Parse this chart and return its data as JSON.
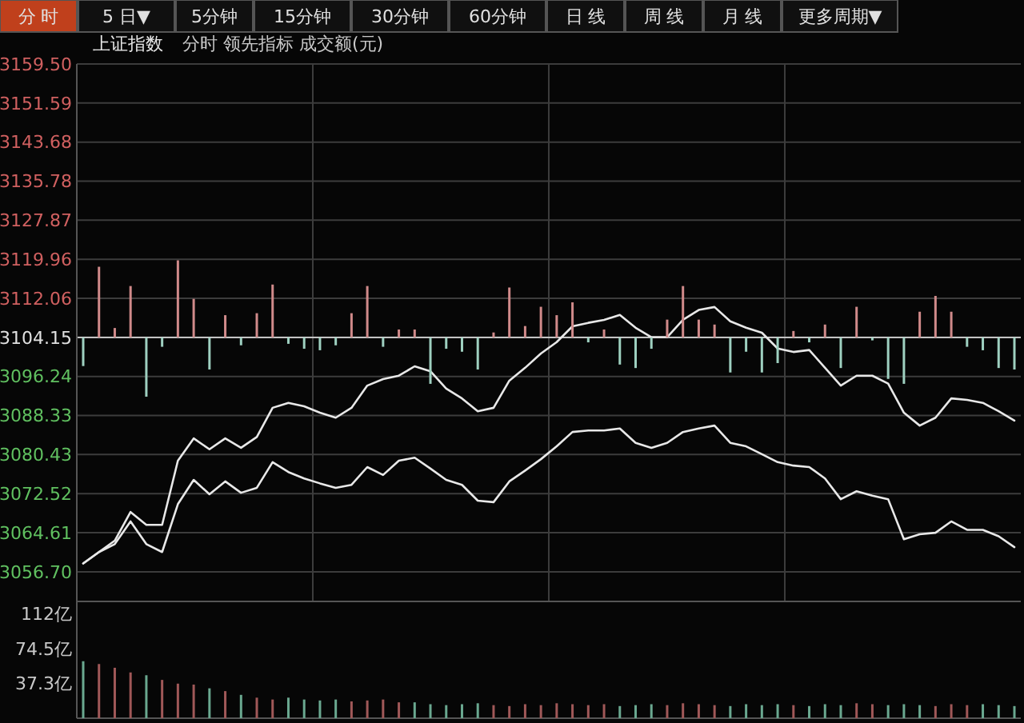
{
  "chart_data": [
    {
      "type": "line",
      "title": "上证指数",
      "subtitle": "分时  领先指标  成交额(元)",
      "grid": true,
      "annotations": [
        "分 时",
        "5 日▼",
        "5分钟",
        "15分钟",
        "30分钟",
        "60分钟",
        "日 线",
        "周 线",
        "月 线",
        "更多周期▼"
      ],
      "categories": [
        null,
        null,
        null,
        null,
        null,
        null,
        null,
        null,
        null,
        null,
        null,
        null,
        null,
        null,
        null,
        null,
        null,
        null,
        null,
        null,
        null,
        null,
        null,
        null,
        null,
        null,
        null,
        null,
        null,
        null,
        null,
        null,
        null,
        null,
        null,
        null,
        null,
        null,
        null,
        null,
        null,
        null,
        null,
        null,
        null,
        null,
        null,
        null,
        null,
        null,
        null,
        null,
        null,
        null,
        null,
        null,
        null,
        null,
        null,
        null
      ],
      "ylim": [
        3050.7,
        3159.5
      ],
      "yticks": [
        {
          "value": 3056.7,
          "label": "3056.70"
        },
        {
          "value": 3064.61,
          "label": "3064.61"
        },
        {
          "value": 3072.52,
          "label": "3072.52"
        },
        {
          "value": 3080.43,
          "label": "3080.43"
        },
        {
          "value": 3088.33,
          "label": "3088.33"
        },
        {
          "value": 3096.24,
          "label": "3096.24"
        },
        {
          "value": 3104.15,
          "label": "3104.15"
        },
        {
          "value": 3112.06,
          "label": "3112.06"
        },
        {
          "value": 3119.96,
          "label": "3119.96"
        },
        {
          "value": 3127.87,
          "label": "3127.87"
        },
        {
          "value": 3135.78,
          "label": "3135.78"
        },
        {
          "value": 3143.68,
          "label": "3143.68"
        },
        {
          "value": 3151.59,
          "label": "3151.59"
        },
        {
          "value": 3159.5,
          "label": "3159.50"
        }
      ],
      "ref_lines": [
        {
          "axis": "y",
          "value": 3104.15,
          "color": "#d8d8d8"
        }
      ],
      "series": [
        {
          "color": "#e8e8e8",
          "values": [
            3058.4,
            3060.7,
            3063.0,
            3068.8,
            3066.2,
            3066.2,
            3079.2,
            3083.7,
            3081.5,
            3083.7,
            3081.8,
            3084.0,
            3089.9,
            3090.9,
            3090.2,
            3088.9,
            3087.9,
            3089.9,
            3094.4,
            3095.7,
            3096.4,
            3098.3,
            3097.3,
            3093.8,
            3091.8,
            3089.2,
            3089.9,
            3095.4,
            3098.0,
            3100.9,
            3103.2,
            3106.4,
            3107.1,
            3107.7,
            3108.7,
            3106.1,
            3104.2,
            3104.2,
            3107.7,
            3109.7,
            3110.3,
            3107.4,
            3106.1,
            3105.1,
            3101.9,
            3101.2,
            3101.6,
            3098.0,
            3094.4,
            3096.4,
            3096.4,
            3094.8,
            3088.9,
            3086.3,
            3087.9,
            3091.8,
            3091.5,
            3090.9,
            3089.2,
            3087.3
          ]
        },
        {
          "color": "#e8e8e8",
          "values": [
            3058.4,
            3060.7,
            3062.3,
            3066.9,
            3062.3,
            3060.7,
            3070.4,
            3075.3,
            3072.4,
            3075.0,
            3072.7,
            3073.7,
            3078.9,
            3076.9,
            3075.6,
            3074.6,
            3073.7,
            3074.3,
            3077.9,
            3076.3,
            3079.2,
            3079.8,
            3077.6,
            3075.3,
            3074.3,
            3071.1,
            3070.8,
            3075.0,
            3077.2,
            3079.5,
            3082.1,
            3085.0,
            3085.3,
            3085.3,
            3085.7,
            3082.8,
            3081.8,
            3082.8,
            3085.0,
            3085.7,
            3086.3,
            3082.8,
            3082.1,
            3080.5,
            3078.9,
            3078.2,
            3077.9,
            3075.6,
            3071.4,
            3073.0,
            3072.1,
            3071.4,
            3063.3,
            3064.3,
            3064.6,
            3066.9,
            3065.2,
            3065.2,
            3063.9,
            3061.7
          ]
        },
        {
          "type": "bar",
          "values": [
            -5.8,
            14.3,
            1.9,
            10.4,
            -12.0,
            -1.9,
            15.6,
            7.8,
            -6.5,
            4.5,
            -1.6,
            4.9,
            10.7,
            -1.3,
            -2.3,
            -2.6,
            -1.6,
            4.9,
            10.4,
            -1.9,
            1.6,
            1.6,
            -9.4,
            -2.3,
            -2.9,
            -6.5,
            1.0,
            10.1,
            2.3,
            6.2,
            4.5,
            7.1,
            -1.0,
            1.6,
            -5.5,
            -6.2,
            -2.3,
            3.6,
            10.4,
            3.6,
            2.6,
            -7.1,
            -2.9,
            -7.1,
            -5.2,
            1.3,
            -1.0,
            2.6,
            -6.2,
            6.2,
            -0.6,
            -8.4,
            -9.4,
            5.2,
            8.4,
            5.2,
            -1.9,
            -2.6,
            -6.2,
            -6.5
          ],
          "base": [
            3104.15,
            3104.15,
            3104.15,
            3104.15,
            3104.15,
            3104.15,
            3104.15,
            3104.15,
            3104.15,
            3104.15,
            3104.15,
            3104.15,
            3104.15,
            3104.15,
            3104.15,
            3104.15,
            3104.15,
            3104.15,
            3104.15,
            3104.15,
            3104.15,
            3104.15,
            3104.15,
            3104.15,
            3104.15,
            3104.15,
            3104.15,
            3104.15,
            3104.15,
            3104.15,
            3104.15,
            3104.15,
            3104.15,
            3104.15,
            3104.15,
            3104.15,
            3104.15,
            3104.15,
            3104.15,
            3104.15,
            3104.15,
            3104.15,
            3104.15,
            3104.15,
            3104.15,
            3104.15,
            3104.15,
            3104.15,
            3104.15,
            3104.15,
            3104.15,
            3104.15,
            3104.15,
            3104.15,
            3104.15,
            3104.15,
            3104.15,
            3104.15,
            3104.15,
            3104.15
          ],
          "colors": [
            "#9ed0c0",
            "#d08a8a",
            "#d08a8a",
            "#d08a8a",
            "#9ed0c0",
            "#9ed0c0",
            "#d08a8a",
            "#d08a8a",
            "#9ed0c0",
            "#d08a8a",
            "#9ed0c0",
            "#d08a8a",
            "#d08a8a",
            "#9ed0c0",
            "#9ed0c0",
            "#9ed0c0",
            "#9ed0c0",
            "#d08a8a",
            "#d08a8a",
            "#9ed0c0",
            "#d08a8a",
            "#d08a8a",
            "#9ed0c0",
            "#9ed0c0",
            "#9ed0c0",
            "#9ed0c0",
            "#d08a8a",
            "#d08a8a",
            "#d08a8a",
            "#d08a8a",
            "#d08a8a",
            "#d08a8a",
            "#9ed0c0",
            "#d08a8a",
            "#9ed0c0",
            "#9ed0c0",
            "#9ed0c0",
            "#d08a8a",
            "#d08a8a",
            "#d08a8a",
            "#d08a8a",
            "#9ed0c0",
            "#9ed0c0",
            "#9ed0c0",
            "#9ed0c0",
            "#d08a8a",
            "#9ed0c0",
            "#d08a8a",
            "#9ed0c0",
            "#d08a8a",
            "#9ed0c0",
            "#9ed0c0",
            "#9ed0c0",
            "#d08a8a",
            "#d08a8a",
            "#d08a8a",
            "#9ed0c0",
            "#9ed0c0",
            "#9ed0c0",
            "#9ed0c0"
          ]
        }
      ]
    },
    {
      "type": "bar",
      "categories": [
        null,
        null,
        null,
        null,
        null,
        null,
        null,
        null,
        null,
        null,
        null,
        null,
        null,
        null,
        null,
        null,
        null,
        null,
        null,
        null,
        null,
        null,
        null,
        null,
        null,
        null,
        null,
        null,
        null,
        null,
        null,
        null,
        null,
        null,
        null,
        null,
        null,
        null,
        null,
        null,
        null,
        null,
        null,
        null,
        null,
        null,
        null,
        null,
        null,
        null,
        null,
        null,
        null,
        null,
        null,
        null,
        null,
        null,
        null,
        null
      ],
      "ylim": [
        0,
        125
      ],
      "yticks": [
        {
          "value": 37.3,
          "label": "37.3亿"
        },
        {
          "value": 74.5,
          "label": "74.5亿"
        },
        {
          "value": 112,
          "label": "112亿"
        }
      ],
      "values": [
        61,
        58,
        54,
        49,
        46,
        41,
        37,
        36,
        32,
        29,
        25,
        22,
        20,
        22,
        20,
        19,
        20,
        18,
        19,
        20,
        17,
        17,
        15,
        14,
        15,
        16,
        14,
        13,
        15,
        14,
        16,
        15,
        14,
        15,
        13,
        14,
        15,
        14,
        16,
        15,
        14,
        13,
        15,
        14,
        15,
        14,
        13,
        15,
        14,
        16,
        15,
        14,
        15,
        14,
        13,
        15,
        14,
        15,
        14,
        13
      ],
      "colors": [
        "#6aa890",
        "#a05858",
        "#a05858",
        "#a05858",
        "#6aa890",
        "#a05858",
        "#a05858",
        "#a05858",
        "#6aa890",
        "#a05858",
        "#6aa890",
        "#a05858",
        "#a05858",
        "#6aa890",
        "#6aa890",
        "#6aa890",
        "#6aa890",
        "#a05858",
        "#a05858",
        "#a05858",
        "#a05858",
        "#6aa890",
        "#6aa890",
        "#6aa890",
        "#6aa890",
        "#6aa890",
        "#a05858",
        "#a05858",
        "#a05858",
        "#a05858",
        "#a05858",
        "#a05858",
        "#a05858",
        "#a05858",
        "#6aa890",
        "#6aa890",
        "#6aa890",
        "#a05858",
        "#a05858",
        "#a05858",
        "#a05858",
        "#6aa890",
        "#6aa890",
        "#6aa890",
        "#6aa890",
        "#a05858",
        "#6aa890",
        "#6aa890",
        "#6aa890",
        "#a05858",
        "#a05858",
        "#6aa890",
        "#6aa890",
        "#6aa890",
        "#a05858",
        "#a05858",
        "#a05858",
        "#6aa890",
        "#6aa890",
        "#6aa890"
      ]
    }
  ]
}
